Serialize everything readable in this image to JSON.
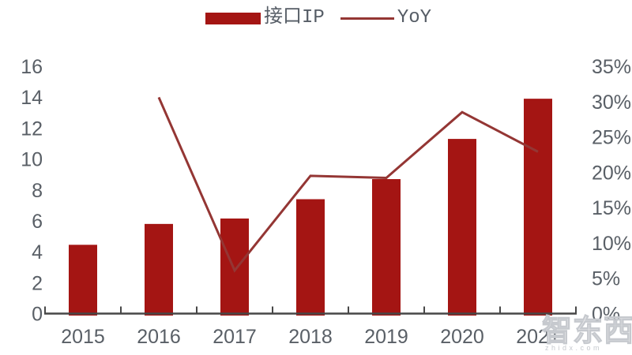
{
  "legend": {
    "items": [
      {
        "label": "接口IP",
        "type": "bar"
      },
      {
        "label": "YoY",
        "type": "line"
      }
    ]
  },
  "chart_data": {
    "type": "bar+line",
    "categories": [
      "2015",
      "2016",
      "2017",
      "2018",
      "2019",
      "2020",
      "2021"
    ],
    "series": [
      {
        "name": "接口IP",
        "type": "bar",
        "axis": "left",
        "values": [
          4.45,
          5.8,
          6.15,
          7.4,
          8.7,
          11.3,
          13.9
        ]
      },
      {
        "name": "YoY",
        "type": "line",
        "axis": "right",
        "values": [
          null,
          30.6,
          6.1,
          19.5,
          19.2,
          28.5,
          22.9
        ]
      }
    ],
    "left_axis": {
      "min": 0,
      "max": 16,
      "step": 2,
      "ticks": [
        "0",
        "2",
        "4",
        "6",
        "8",
        "10",
        "12",
        "14",
        "16"
      ]
    },
    "right_axis": {
      "min": 0,
      "max": 35,
      "step": 5,
      "ticks": [
        "0%",
        "5%",
        "10%",
        "15%",
        "20%",
        "25%",
        "30%",
        "35%"
      ]
    },
    "legend_position": "top",
    "grid": false,
    "title": "",
    "xlabel": "",
    "ylabel": ""
  },
  "watermark": {
    "logo": "智东西",
    "domain": "zhidx.com"
  },
  "colors": {
    "bar": "#a41513",
    "line": "#943634",
    "axis": "#474747",
    "tick_label": "#595f66",
    "legend_text": "#565d66",
    "watermark": "#c6c9ce"
  }
}
